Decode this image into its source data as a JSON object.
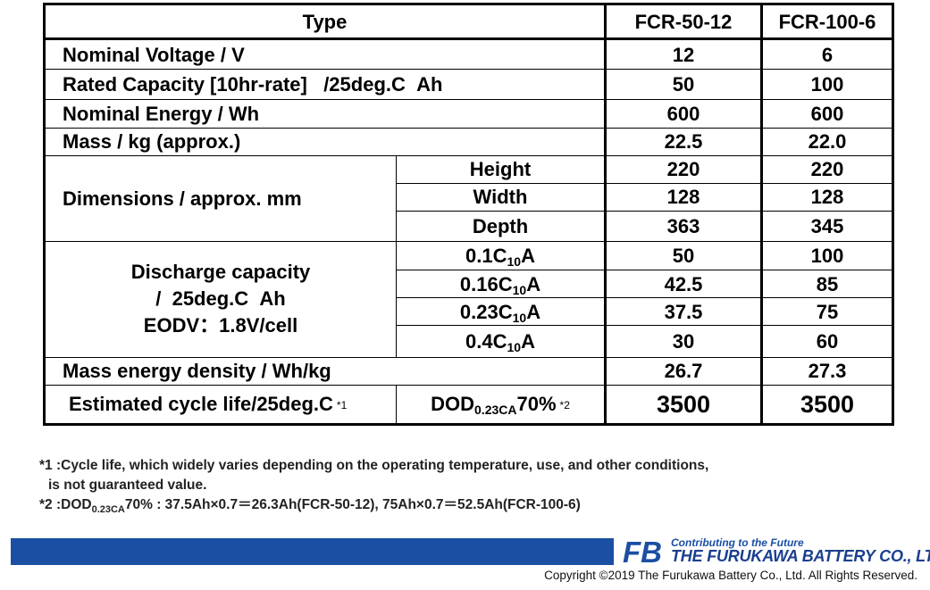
{
  "table": {
    "header": {
      "type_label": "Type",
      "model_a": "FCR-50-12",
      "model_b": "FCR-100-6"
    },
    "nominal_voltage": {
      "label": "Nominal Voltage / V",
      "a": "12",
      "b": "6"
    },
    "rated_capacity": {
      "label": "Rated Capacity [10hr-rate]   /25deg.C  Ah",
      "a": "50",
      "b": "100"
    },
    "nominal_energy": {
      "label": "Nominal Energy / Wh",
      "a": "600",
      "b": "600"
    },
    "mass": {
      "label": "Mass / kg (approx.)",
      "a": "22.5",
      "b": "22.0"
    },
    "dimensions": {
      "label": "Dimensions / approx. mm",
      "height": {
        "label": "Height",
        "a": "220",
        "b": "220"
      },
      "width": {
        "label": "Width",
        "a": "128",
        "b": "128"
      },
      "depth": {
        "label": "Depth",
        "a": "363",
        "b": "345"
      }
    },
    "discharge": {
      "label_line1": "Discharge capacity",
      "label_line2": "/  25deg.C  Ah",
      "label_line3": "EODV：1.8V/cell",
      "rows": [
        {
          "pre": "0.1C",
          "sub": "10",
          "post": "A",
          "a": "50",
          "b": "100"
        },
        {
          "pre": "0.16C",
          "sub": "10",
          "post": "A",
          "a": "42.5",
          "b": "85"
        },
        {
          "pre": "0.23C",
          "sub": "10",
          "post": "A",
          "a": "37.5",
          "b": "75"
        },
        {
          "pre": "0.4C",
          "sub": "10",
          "post": "A",
          "a": "30",
          "b": "60"
        }
      ]
    },
    "mass_energy_density": {
      "label": "Mass energy density / Wh/kg",
      "a": "26.7",
      "b": "27.3"
    },
    "cycle_life": {
      "label": "Estimated cycle life/25deg.C",
      "label_note": "*1",
      "dod_pre": "DOD",
      "dod_sub": "0.23CA",
      "dod_post": "70%",
      "dod_note": "*2",
      "a": "3500",
      "b": "3500"
    }
  },
  "notes": {
    "n1_line1": "*1 :Cycle life, which widely varies depending on the operating temperature, use, and other conditions,",
    "n1_line2": "is not guaranteed value.",
    "n2_pre": "*2 :DOD",
    "n2_sub": "0.23CA",
    "n2_post": "70% : 37.5Ah×0.7＝26.3Ah(FCR-50-12), 75Ah×0.7＝52.5Ah(FCR-100-6)"
  },
  "footer": {
    "logo_text": "FB",
    "tagline": "Contributing to the Future",
    "company": "THE FURUKAWA BATTERY CO., LTD.",
    "copyright": "Copyright ©2019 The Furukawa Battery Co., Ltd. All Rights Reserved.",
    "brand_color": "#1a4fa3"
  }
}
